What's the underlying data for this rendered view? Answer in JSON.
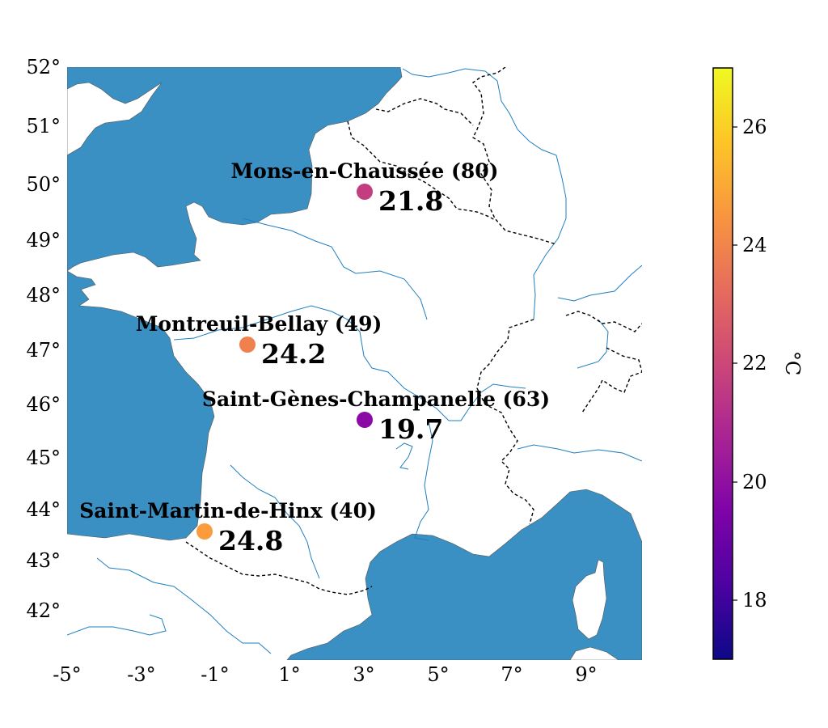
{
  "map": {
    "lat_ticks": [
      "52°",
      "51°",
      "50°",
      "49°",
      "48°",
      "47°",
      "46°",
      "45°",
      "44°",
      "43°",
      "42°"
    ],
    "lon_ticks": [
      "-5°",
      "-3°",
      "-1°",
      "1°",
      "3°",
      "5°",
      "7°",
      "9°"
    ],
    "extent": {
      "lon": [
        -5,
        10.5
      ],
      "lat": [
        41.1,
        52
      ]
    }
  },
  "colors": {
    "sea": "#3a8fc3",
    "river": "#1f7fbf",
    "border": "#000000",
    "land": "#ffffff"
  },
  "stations": [
    {
      "name": "Mons-en-Chaussée (80)",
      "value": "21.8",
      "lon": 3.0,
      "lat": 49.85,
      "color": "#c43e7f"
    },
    {
      "name": "Montreuil-Bellay (49)",
      "value": "24.2",
      "lon": -0.15,
      "lat": 47.1,
      "color": "#f0804e"
    },
    {
      "name": "Saint-Gènes-Champanelle (63)",
      "value": "19.7",
      "lon": 3.0,
      "lat": 45.7,
      "color": "#8b0aa5"
    },
    {
      "name": "Saint-Martin-de-Hinx (40)",
      "value": "24.8",
      "lon": -1.3,
      "lat": 43.58,
      "color": "#fb9b3c"
    }
  ],
  "colorbar": {
    "label": "°C",
    "ticks": [
      "26",
      "24",
      "22",
      "20",
      "18"
    ],
    "tick_values": [
      26,
      24,
      22,
      20,
      18
    ],
    "range": [
      17,
      27
    ],
    "colormap": "plasma"
  }
}
